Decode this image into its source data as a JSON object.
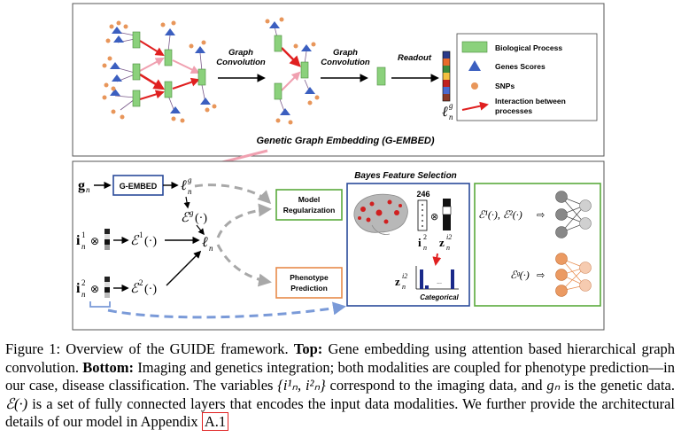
{
  "top": {
    "graph_conv_1": [
      "Graph",
      "Convolution"
    ],
    "graph_conv_2": [
      "Graph",
      "Convolution"
    ],
    "readout": "Readout",
    "readout_var": "ℓ",
    "readout_sup": "g",
    "readout_sub": "n",
    "title": "Genetic Graph Embedding (G-EMBED)",
    "legend": {
      "biological_process": "Biological Process",
      "genes_scores": "Genes Scores",
      "snps": "SNPs",
      "interaction": [
        "Interaction between",
        "processes"
      ]
    }
  },
  "bottom": {
    "g_input": "g",
    "g_sub": "n",
    "gembed_box": "G-EMBED",
    "l_g": "ℓ",
    "l_g_sup": "g",
    "l_g_sub": "n",
    "eg": "ℰ",
    "eg_sup": "g",
    "eg_arg": "(·)",
    "i1": "i",
    "i1_sup": "1",
    "i1_sub": "n",
    "e1": "ℰ",
    "e1_sup": "1",
    "e1_arg": "(·)",
    "i2": "i",
    "i2_sup": "2",
    "i2_sub": "n",
    "e2": "ℰ",
    "e2_sup": "2",
    "e2_arg": "(·)",
    "l_n": "ℓ",
    "l_n_sub": "n",
    "otimes": "⊗",
    "model_reg": [
      "Model",
      "Regularization"
    ],
    "pheno_pred": [
      "Phenotype",
      "Prediction"
    ],
    "bfs_title": "Bayes Feature Selection",
    "bfs_246": "246",
    "bfs_i": "i",
    "bfs_i_sup": "2",
    "bfs_i_sub": "n",
    "bfs_z": "z",
    "bfs_z_sup": "i2",
    "bfs_z_sub": "n",
    "bfs_dots": "...",
    "categorical": "Categorical",
    "right_top": "ℰ¹(·), ℰ²(·)",
    "right_bottom": "ℰᵍ(·)"
  },
  "caption": {
    "fig": "Figure 1: Overview of the GUIDE framework.",
    "top_label": "Top:",
    "top_text": "Gene embedding using attention based hierarchical graph convolution.",
    "bottom_label": "Bottom:",
    "bottom_text_1": "Imaging and genetics integration; both modalities are coupled for phenotype prediction—in our case, disease classification. The variables",
    "vars": "{i¹ₙ, i²ₙ}",
    "bottom_text_2": "correspond to the imaging data, and",
    "gn": "gₙ",
    "bottom_text_3": "is the genetic data.",
    "e_sym": "ℰ(·)",
    "bottom_text_4": "is a set of fully connected layers that encodes the input data modalities. We further provide the architectural details of our model in Appendix",
    "appendix": "A.1"
  },
  "colors": {
    "bio_process": "#8bd17c",
    "gene_score": "#3b5fc0",
    "snp": "#e8965a",
    "interaction": "#e02020",
    "pink": "#f0a0b0",
    "model_reg_border": "#5aaa3c",
    "pheno_border": "#e88a4a",
    "bfs_border": "#2a4a9a",
    "dashed_blue": "#7a9ad8",
    "dashed_gray": "#a8a8a8"
  }
}
